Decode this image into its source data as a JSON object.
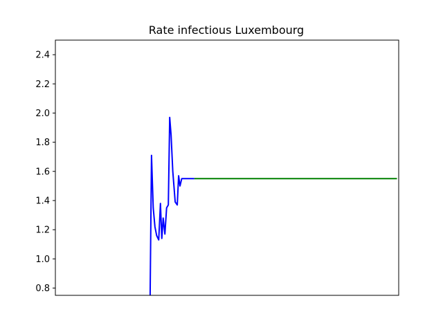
{
  "chart_data": {
    "type": "line",
    "title": "Rate infectious Luxembourg",
    "xlabel": "",
    "ylabel": "",
    "ylim": [
      0.75,
      2.5
    ],
    "yticks": [
      0.8,
      1.0,
      1.2,
      1.4,
      1.6,
      1.8,
      2.0,
      2.2,
      2.4
    ],
    "ytick_labels": [
      "0.8",
      "1.0",
      "1.2",
      "1.4",
      "1.6",
      "1.8",
      "2.0",
      "2.2",
      "2.4"
    ],
    "xlim": [
      0,
      100
    ],
    "x_ticks_shown": false,
    "grid": false,
    "series": [
      {
        "color": "#0000ff",
        "x": [
          27.6,
          28.0,
          28.5,
          29.0,
          29.5,
          30.1,
          30.6,
          31.0,
          31.4,
          31.9,
          32.4,
          32.9,
          33.3,
          33.7,
          34.2,
          34.9,
          35.5,
          35.9,
          36.3,
          36.8,
          37.3,
          37.7,
          38.2,
          38.7,
          39.1,
          39.6,
          40.0,
          40.5
        ],
        "y": [
          0.75,
          1.71,
          1.35,
          1.22,
          1.16,
          1.13,
          1.38,
          1.14,
          1.28,
          1.17,
          1.35,
          1.37,
          1.97,
          1.85,
          1.6,
          1.39,
          1.37,
          1.57,
          1.5,
          1.55,
          1.55,
          1.55,
          1.55,
          1.55,
          1.55,
          1.55,
          1.55,
          1.55
        ]
      },
      {
        "color": "#008000",
        "x": [
          40.5,
          99.5
        ],
        "y": [
          1.55,
          1.55
        ]
      }
    ]
  }
}
